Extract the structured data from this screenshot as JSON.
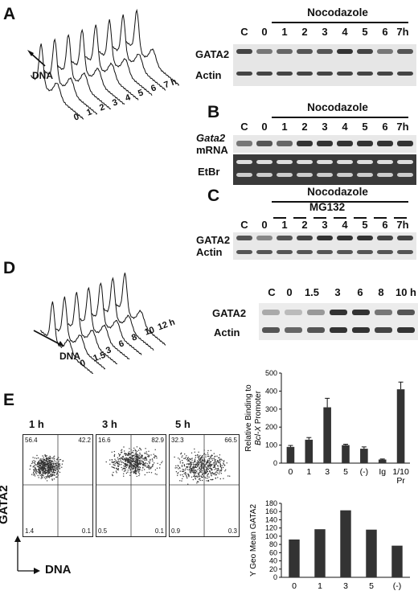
{
  "panels": {
    "a": "A",
    "b": "B",
    "c": "C",
    "d": "D",
    "e": "E"
  },
  "panel_a": {
    "time_ticks": [
      "0",
      "1",
      "2",
      "3",
      "4",
      "5",
      "6",
      "7 h"
    ],
    "axis_label": "DNA",
    "blot_header": "Nocodazole",
    "lanes": [
      "C",
      "0",
      "1",
      "2",
      "3",
      "4",
      "5",
      "6",
      "7h"
    ],
    "rows": [
      "GATA2",
      "Actin"
    ]
  },
  "panel_b": {
    "blot_header": "Nocodazole",
    "lanes": [
      "C",
      "0",
      "1",
      "2",
      "3",
      "4",
      "5",
      "6",
      "7h"
    ],
    "row1_italic": "Gata2",
    "row1_rest": "mRNA",
    "row2": "EtBr"
  },
  "panel_c": {
    "blot_header": "Nocodazole",
    "sub_header": "MG132",
    "lanes": [
      "C",
      "0",
      "1",
      "2",
      "3",
      "4",
      "5",
      "6",
      "7h"
    ],
    "rows": [
      "GATA2",
      "Actin"
    ]
  },
  "panel_d": {
    "time_ticks": [
      "0",
      "1.5",
      "3",
      "6",
      "8",
      "10",
      "12 h"
    ],
    "axis_label": "DNA",
    "lanes": [
      "C",
      "0",
      "1.5",
      "3",
      "6",
      "8",
      "10 h"
    ],
    "rows": [
      "GATA2",
      "Actin"
    ]
  },
  "panel_e": {
    "flow_titles": [
      "1 h",
      "3 h",
      "5 h"
    ],
    "quadrants": [
      {
        "ul": "56.4",
        "ur": "42.2",
        "ll": "1.4",
        "lr": "0.1"
      },
      {
        "ul": "16.6",
        "ur": "82.9",
        "ll": "0.5",
        "lr": "0.1"
      },
      {
        "ul": "32.3",
        "ur": "66.5",
        "ll": "0.9",
        "lr": "0.3"
      }
    ],
    "y_axis": "GATA2",
    "x_axis": "DNA"
  },
  "chart_data": [
    {
      "type": "bar",
      "categories": [
        "0",
        "1",
        "3",
        "5",
        "(-)",
        "Ig",
        "1/10 Pr"
      ],
      "values": [
        90,
        130,
        310,
        100,
        80,
        20,
        410
      ],
      "errors": [
        8,
        12,
        50,
        5,
        10,
        3,
        40
      ],
      "ylabel_line1": "Relative Binding to",
      "ylabel_italic": "Bcl-X",
      "ylabel_after": "Promoter",
      "ylim": [
        0,
        500
      ],
      "yticks": [
        "0",
        "50",
        "100",
        "150",
        "200",
        "250",
        "300",
        "350",
        "400",
        "450",
        "500"
      ],
      "grid": false
    },
    {
      "type": "bar",
      "categories": [
        "0",
        "1",
        "3",
        "5",
        "(-)"
      ],
      "values": [
        92,
        117,
        163,
        116,
        77
      ],
      "ylabel": "Y Geo Mean GATA2",
      "ylim": [
        0,
        180
      ],
      "yticks": [
        "0",
        "20",
        "40",
        "60",
        "80",
        "100",
        "120",
        "140",
        "160",
        "180"
      ],
      "grid": false
    }
  ]
}
